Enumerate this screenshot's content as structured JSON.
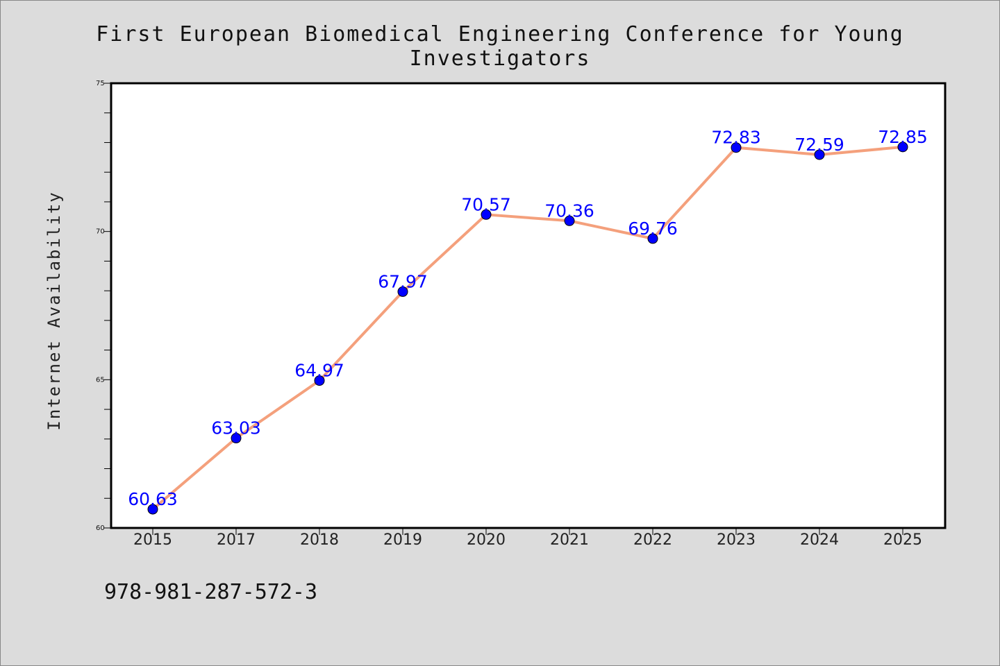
{
  "chart_data": {
    "type": "line",
    "title": "First European Biomedical Engineering Conference for Young Investigators",
    "xlabel": "",
    "ylabel": "Internet Availability",
    "categories": [
      "2015",
      "2017",
      "2018",
      "2019",
      "2020",
      "2021",
      "2022",
      "2023",
      "2024",
      "2025"
    ],
    "series": [
      {
        "values": [
          60.63,
          63.03,
          64.97,
          67.97,
          70.57,
          70.36,
          69.76,
          72.83,
          72.59,
          72.85
        ],
        "labels": [
          "60.63",
          "63.03",
          "64.97",
          "67.97",
          "70.57",
          "70.36",
          "69.76",
          "72.83",
          "72.59",
          "72.85"
        ]
      }
    ],
    "ylim": [
      60,
      75
    ],
    "yticks": [
      "60",
      "65",
      "70",
      "75"
    ],
    "grid": false,
    "colors": {
      "line": "#f4a07c",
      "marker": "#0000ff",
      "data_label": "#0000ff",
      "background": "#dcdcdc",
      "plot_background": "#ffffff"
    }
  },
  "footer_text": "978-981-287-572-3"
}
